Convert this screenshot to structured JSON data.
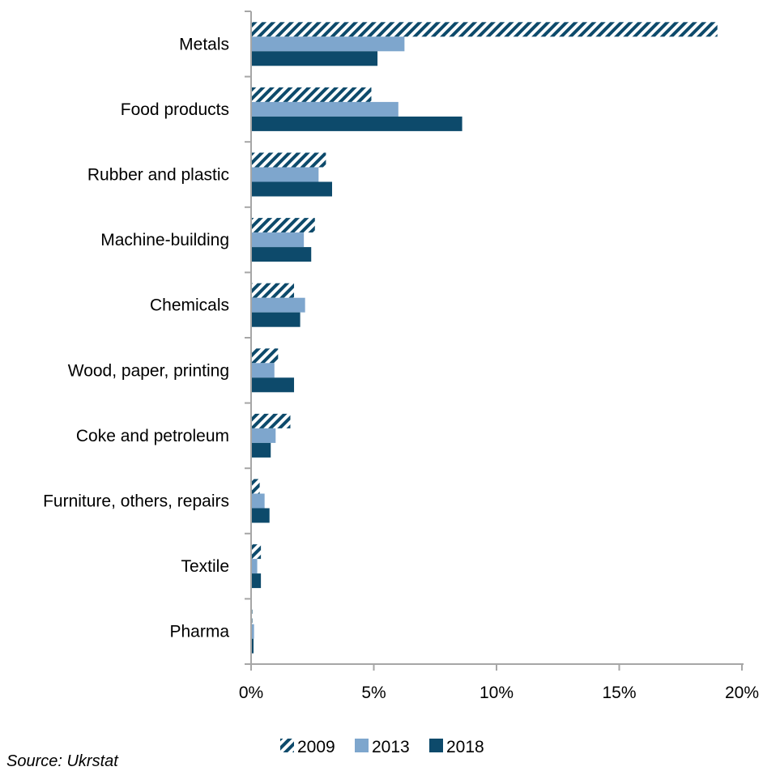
{
  "chart_data": {
    "type": "bar",
    "orientation": "horizontal",
    "categories": [
      "Metals",
      "Food products",
      "Rubber and plastic",
      "Machine-building",
      "Chemicals",
      "Wood, paper, printing",
      "Coke and petroleum",
      "Furniture, others, repairs",
      "Textile",
      "Pharma"
    ],
    "series": [
      {
        "name": "2009",
        "color": "#0d4a6b",
        "pattern": "diagonal-hatch",
        "values": [
          19.0,
          4.9,
          3.05,
          2.6,
          1.75,
          1.1,
          1.6,
          0.35,
          0.4,
          0.05
        ]
      },
      {
        "name": "2013",
        "color": "#7ea6cd",
        "pattern": "solid",
        "values": [
          6.25,
          6.0,
          2.75,
          2.15,
          2.2,
          0.95,
          1.0,
          0.55,
          0.25,
          0.12
        ]
      },
      {
        "name": "2018",
        "color": "#0d4a6b",
        "pattern": "solid",
        "values": [
          5.15,
          8.6,
          3.3,
          2.45,
          2.0,
          1.75,
          0.8,
          0.75,
          0.4,
          0.1
        ]
      }
    ],
    "xlim": [
      0,
      20
    ],
    "xticks": [
      0,
      5,
      10,
      15,
      20
    ],
    "xtick_labels": [
      "0%",
      "5%",
      "10%",
      "15%",
      "20%"
    ],
    "legend_position": "bottom",
    "grid": false
  },
  "source_note": "Source: Ukrstat"
}
